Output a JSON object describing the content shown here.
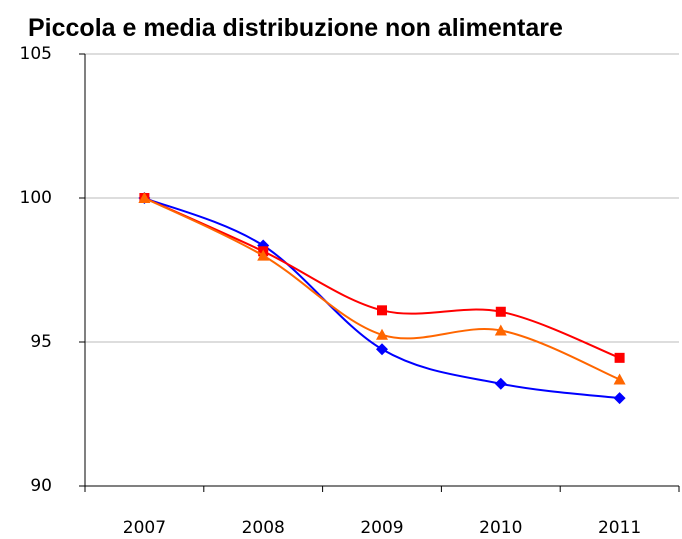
{
  "chart_data": {
    "type": "line",
    "title": "Piccola e media distribuzione non alimentare",
    "categories": [
      "2007",
      "2008",
      "2009",
      "2010",
      "2011"
    ],
    "series": [
      {
        "color": "#0000ff",
        "marker": "diamond",
        "values": [
          100,
          98.35,
          94.75,
          93.55,
          93.05
        ]
      },
      {
        "color": "#ff0000",
        "marker": "square",
        "values": [
          100,
          98.15,
          96.1,
          96.05,
          94.45
        ]
      },
      {
        "color": "#ff6600",
        "marker": "triangle",
        "values": [
          100,
          98.0,
          95.25,
          95.4,
          93.7
        ]
      }
    ],
    "ylim": [
      90,
      105
    ],
    "yticks": [
      90,
      95,
      100,
      105
    ],
    "grid": true,
    "smooth": true
  }
}
